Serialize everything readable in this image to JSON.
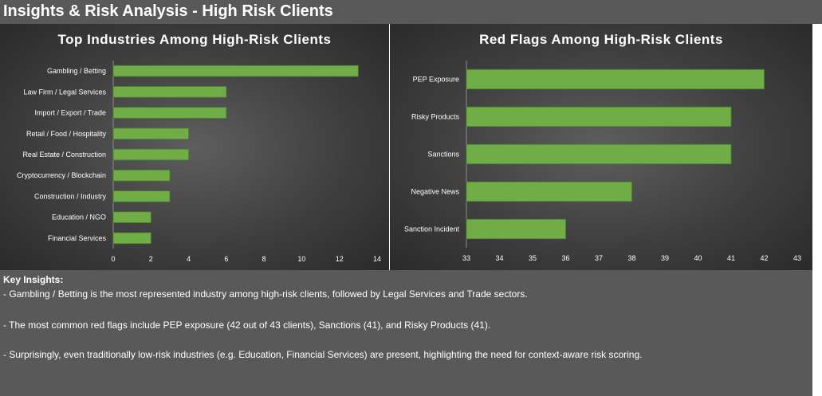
{
  "header": {
    "title": "Insights & Risk Analysis - High Risk Clients"
  },
  "chart_data": [
    {
      "type": "bar",
      "orientation": "horizontal",
      "title": "Top Industries Among High-Risk Clients",
      "categories": [
        "Gambling / Betting",
        "Law Firm / Legal Services",
        "Import / Export / Trade",
        "Retail / Food / Hospitality",
        "Real Estate / Construction",
        "Cryptocurrency / Blockchain",
        "Construction / Industry",
        "Education / NGO",
        "Financial Services"
      ],
      "values": [
        13,
        6,
        6,
        4,
        4,
        3,
        3,
        2,
        2
      ],
      "xlim": [
        0,
        14
      ],
      "ticks": [
        0,
        2,
        4,
        6,
        8,
        10,
        12,
        14
      ],
      "bar_color": "#70ad47",
      "grid": false
    },
    {
      "type": "bar",
      "orientation": "horizontal",
      "title": "Red Flags Among High-Risk Clients",
      "categories": [
        "PEP Exposure",
        "Risky Products",
        "Sanctions",
        "Negative News",
        "Sanction Incident"
      ],
      "values": [
        42,
        41,
        41,
        38,
        36
      ],
      "xlim": [
        33,
        43
      ],
      "ticks": [
        33,
        34,
        35,
        36,
        37,
        38,
        39,
        40,
        41,
        42,
        43
      ],
      "bar_color": "#70ad47",
      "grid": false
    }
  ],
  "insights": {
    "label": "Key Insights:",
    "lines": [
      "- Gambling / Betting is the most represented industry among high-risk clients, followed by Legal Services and Trade sectors.",
      "- The most common red flags include PEP exposure (42 out of 43 clients), Sanctions (41), and Risky Products (41).",
      "- Surprisingly, even traditionally low-risk industries (e.g. Education, Financial Services) are present, highlighting the need for context-aware risk scoring."
    ]
  }
}
